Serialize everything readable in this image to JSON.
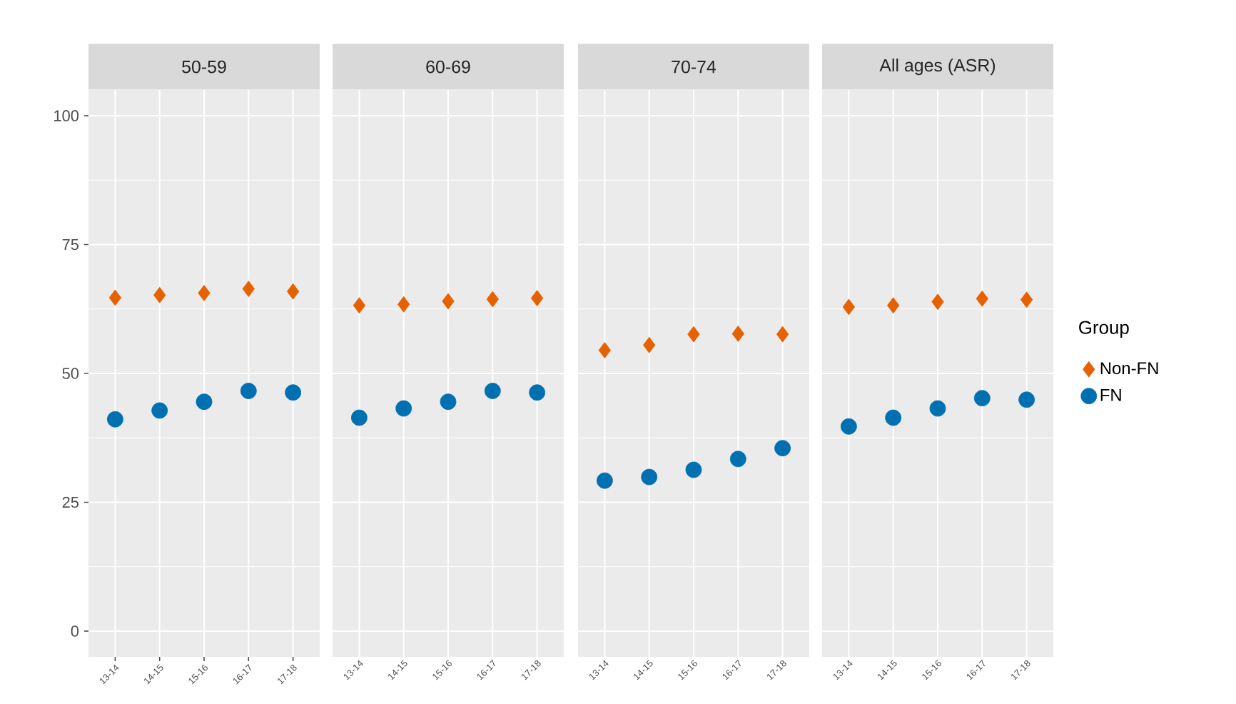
{
  "chart_data": [
    {
      "type": "scatter",
      "title": "50-59",
      "categories": [
        "13-14",
        "14-15",
        "15-16",
        "16-17",
        "17-18"
      ],
      "ylim": [
        -5,
        105
      ],
      "yticks": [
        0,
        25,
        50,
        75,
        100
      ],
      "grid": true,
      "series": [
        {
          "color": "#e66100",
          "marker": "diamond",
          "values": [
            64.7,
            65.2,
            65.6,
            66.4,
            65.9
          ]
        },
        {
          "color": "#0070b0",
          "marker": "circle",
          "values": [
            41.1,
            42.8,
            44.5,
            46.6,
            46.3
          ]
        }
      ]
    },
    {
      "type": "scatter",
      "title": "60-69",
      "categories": [
        "13-14",
        "14-15",
        "15-16",
        "16-17",
        "17-18"
      ],
      "ylim": [
        -5,
        105
      ],
      "yticks": [
        0,
        25,
        50,
        75,
        100
      ],
      "grid": true,
      "tick_labels": "x",
      "series": [
        {
          "color": "#e66100",
          "marker": "diamond",
          "values": [
            63.2,
            63.4,
            64.0,
            64.4,
            64.6
          ]
        },
        {
          "color": "#0070b0",
          "marker": "circle",
          "values": [
            41.4,
            43.2,
            44.5,
            46.6,
            46.3
          ]
        }
      ]
    },
    {
      "type": "scatter",
      "title": "70-74",
      "categories": [
        "13-14",
        "14-15",
        "15-16",
        "16-17",
        "17-18"
      ],
      "ylim": [
        -5,
        105
      ],
      "yticks": [
        0,
        25,
        50,
        75,
        100
      ],
      "grid": true,
      "tick_labels": "x",
      "series": [
        {
          "color": "#e66100",
          "marker": "diamond",
          "values": [
            54.5,
            55.5,
            57.6,
            57.7,
            57.6
          ]
        },
        {
          "color": "#0070b0",
          "marker": "circle",
          "values": [
            29.2,
            29.9,
            31.3,
            33.4,
            35.5
          ]
        }
      ]
    },
    {
      "type": "scatter",
      "title": "All ages (ASR)",
      "categories": [
        "13-14",
        "14-15",
        "15-16",
        "16-17",
        "17-18"
      ],
      "ylim": [
        -5,
        105
      ],
      "yticks": [
        0,
        25,
        50,
        75,
        100
      ],
      "grid": true,
      "tick_labels": "x",
      "legend": "right",
      "legend_title": "Group",
      "series": [
        {
          "name": "Non-FN",
          "color": "#e66100",
          "marker": "diamond",
          "values": [
            62.9,
            63.2,
            63.9,
            64.5,
            64.3
          ]
        },
        {
          "name": "FN",
          "color": "#0070b0",
          "marker": "circle",
          "values": [
            39.7,
            41.4,
            43.2,
            45.2,
            44.9
          ]
        }
      ]
    }
  ]
}
